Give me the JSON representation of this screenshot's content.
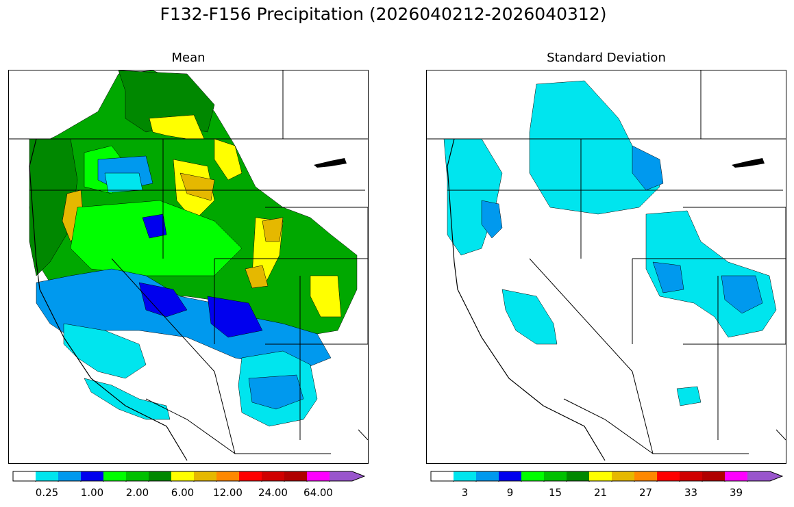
{
  "title": "F132-F156 Precipitation (2026040212-2026040312)",
  "panels": [
    {
      "id": "mean",
      "title": "Mean"
    },
    {
      "id": "stddev",
      "title": "Standard Deviation"
    }
  ],
  "colorbars": {
    "mean": {
      "colors": [
        "#ffffff",
        "#00e5ee",
        "#0099ee",
        "#0000ee",
        "#00ff00",
        "#00c000",
        "#008800",
        "#ffff00",
        "#e5b800",
        "#ff8800",
        "#ff0000",
        "#d00000",
        "#b00000",
        "#ff00ff",
        "#9955cc"
      ],
      "tick_labels": [
        "0.25",
        "1.00",
        "2.00",
        "6.00",
        "12.00",
        "24.00",
        "64.00"
      ],
      "extend": "max"
    },
    "stddev": {
      "colors": [
        "#ffffff",
        "#00e5ee",
        "#0099ee",
        "#0000ee",
        "#00ff00",
        "#00c000",
        "#008800",
        "#ffff00",
        "#e5b800",
        "#ff8800",
        "#ff0000",
        "#d00000",
        "#b00000",
        "#ff00ff",
        "#9955cc"
      ],
      "tick_labels": [
        "3",
        "9",
        "15",
        "21",
        "27",
        "33",
        "39"
      ],
      "extend": "max"
    }
  },
  "map_colors": {
    "land_empty": "#ffffff",
    "border": "#000000"
  }
}
